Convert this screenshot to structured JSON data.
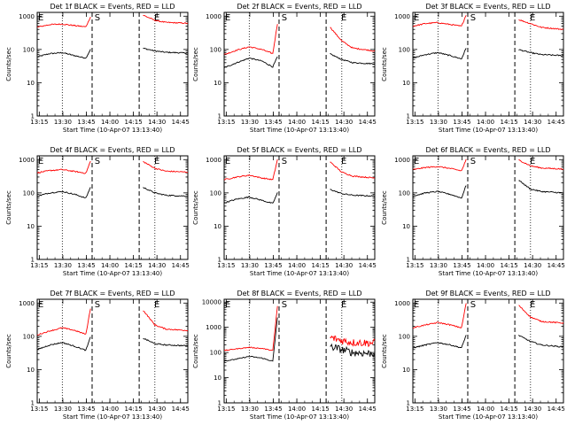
{
  "chart_data": {
    "type": "line",
    "layout": "3x3 grid",
    "common": {
      "xlabel": "Start Time (10-Apr-07 13:13:40)",
      "ylabel": "Counts/sec",
      "x_ticks": [
        "13:15",
        "13:30",
        "13:45",
        "14:00",
        "14:15",
        "14:30",
        "14:45"
      ],
      "x_tick_minutes": [
        1.33,
        16.33,
        31.33,
        46.33,
        61.33,
        76.33,
        91.33
      ],
      "x_range_minutes": [
        0,
        96
      ],
      "y_scale": "log",
      "series_names": [
        "Events",
        "LLD"
      ],
      "series_colors": {
        "events": "#000000",
        "lld": "#ff0000"
      },
      "x_minutes": [
        0,
        8,
        16,
        24,
        31,
        34,
        50,
        66,
        67,
        75,
        82,
        96
      ],
      "gap_minutes": [
        34,
        66
      ],
      "dotted_lines_minutes": [
        16,
        75
      ],
      "dashed_lines_minutes": [
        35,
        65
      ],
      "region_markers": [
        {
          "label": "E",
          "x_minutes": 0
        },
        {
          "label": "S",
          "x_minutes": 36
        },
        {
          "label": "E",
          "x_minutes": 74
        }
      ]
    },
    "panels": [
      {
        "title": "Det 1f BLACK = Events, RED = LLD",
        "y_ticks": [
          "1",
          "10",
          "100",
          "1000"
        ],
        "ylim": [
          1,
          1300
        ],
        "events": [
          60,
          75,
          80,
          65,
          55,
          100,
          null,
          null,
          110,
          90,
          82,
          78
        ],
        "lld": [
          470,
          560,
          580,
          520,
          480,
          950,
          null,
          null,
          1100,
          750,
          650,
          610
        ]
      },
      {
        "title": "Det 2f BLACK = Events, RED = LLD",
        "y_ticks": [
          "1",
          "10",
          "100",
          "1000"
        ],
        "ylim": [
          1,
          1300
        ],
        "events": [
          28,
          40,
          55,
          45,
          30,
          60,
          null,
          null,
          75,
          50,
          40,
          37
        ],
        "lld": [
          70,
          95,
          120,
          100,
          75,
          600,
          null,
          null,
          500,
          180,
          110,
          90
        ]
      },
      {
        "title": "Det 3f BLACK = Events, RED = LLD",
        "y_ticks": [
          "1",
          "10",
          "100",
          "1000"
        ],
        "ylim": [
          1,
          1300
        ],
        "events": [
          55,
          70,
          80,
          65,
          52,
          110,
          null,
          null,
          100,
          80,
          70,
          65
        ],
        "lld": [
          500,
          600,
          640,
          560,
          500,
          1100,
          null,
          null,
          800,
          600,
          460,
          400
        ]
      },
      {
        "title": "Det 4f BLACK = Events, RED = LLD",
        "y_ticks": [
          "1",
          "10",
          "100",
          "1000"
        ],
        "ylim": [
          1,
          1300
        ],
        "events": [
          80,
          100,
          110,
          90,
          70,
          150,
          null,
          null,
          150,
          100,
          85,
          80
        ],
        "lld": [
          400,
          470,
          500,
          440,
          390,
          900,
          null,
          null,
          900,
          550,
          450,
          420
        ]
      },
      {
        "title": "Det 5f BLACK = Events, RED = LLD",
        "y_ticks": [
          "1",
          "10",
          "100",
          "1000"
        ],
        "ylim": [
          1,
          1300
        ],
        "events": [
          50,
          65,
          75,
          60,
          48,
          100,
          null,
          null,
          130,
          95,
          85,
          80
        ],
        "lld": [
          250,
          300,
          340,
          280,
          250,
          1000,
          null,
          null,
          900,
          420,
          320,
          280
        ]
      },
      {
        "title": "Det 6f BLACK = Events, RED = LLD",
        "y_ticks": [
          "1",
          "10",
          "100",
          "1000"
        ],
        "ylim": [
          1,
          1300
        ],
        "events": [
          80,
          100,
          110,
          90,
          70,
          170,
          null,
          null,
          250,
          130,
          110,
          100
        ],
        "lld": [
          500,
          580,
          620,
          540,
          460,
          1000,
          null,
          null,
          1000,
          650,
          560,
          520
        ]
      },
      {
        "title": "Det 7f BLACK = Events, RED = LLD",
        "y_ticks": [
          "1",
          "10",
          "100",
          "1000"
        ],
        "ylim": [
          1,
          1300
        ],
        "events": [
          40,
          55,
          65,
          50,
          38,
          95,
          null,
          null,
          90,
          60,
          55,
          52
        ],
        "lld": [
          110,
          145,
          180,
          150,
          115,
          700,
          null,
          null,
          650,
          220,
          165,
          150
        ]
      },
      {
        "title": "Det 8f BLACK = Events, RED = LLD",
        "y_ticks": [
          "1",
          "10",
          "100",
          "1000",
          "10000"
        ],
        "ylim": [
          1,
          13000
        ],
        "events": [
          45,
          55,
          70,
          60,
          45,
          2500,
          null,
          null,
          180,
          130,
          100,
          90
        ],
        "lld": [
          120,
          140,
          160,
          145,
          120,
          7000,
          null,
          null,
          400,
          300,
          250,
          240
        ]
      },
      {
        "title": "Det 9f BLACK = Events, RED = LLD",
        "y_ticks": [
          "1",
          "10",
          "100",
          "1000"
        ],
        "ylim": [
          1,
          1300
        ],
        "events": [
          45,
          55,
          65,
          55,
          45,
          110,
          null,
          null,
          110,
          70,
          55,
          48
        ],
        "lld": [
          180,
          220,
          260,
          220,
          180,
          1000,
          null,
          null,
          900,
          380,
          280,
          250
        ]
      }
    ]
  }
}
